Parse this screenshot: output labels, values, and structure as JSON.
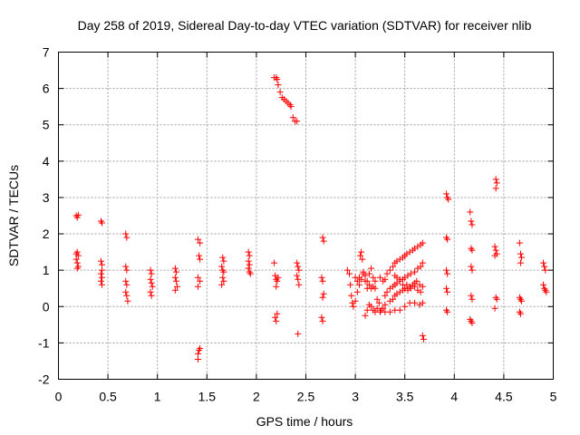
{
  "chart_data": {
    "type": "scatter",
    "title": "Day 258 of 2019, Sidereal Day-to-day VTEC variation (SDTVAR) for receiver nlib",
    "xlabel": "GPS time / hours",
    "ylabel": "SDTVAR / TECUs",
    "xlim": [
      0,
      5
    ],
    "ylim": [
      -2,
      7
    ],
    "xticks": [
      "0",
      "0.5",
      "1",
      "1.5",
      "2",
      "2.5",
      "3",
      "3.5",
      "4",
      "4.5",
      "5"
    ],
    "yticks": [
      "-2",
      "-1",
      "0",
      "1",
      "2",
      "3",
      "4",
      "5",
      "6",
      "7"
    ],
    "grid": true,
    "marker": "+",
    "color": "#ff0000",
    "series": [
      {
        "name": "SDTVAR",
        "points": [
          [
            0.18,
            2.5
          ],
          [
            0.19,
            2.45
          ],
          [
            0.2,
            2.52
          ],
          [
            0.18,
            1.45
          ],
          [
            0.19,
            1.5
          ],
          [
            0.2,
            1.4
          ],
          [
            0.18,
            1.3
          ],
          [
            0.19,
            1.2
          ],
          [
            0.2,
            1.1
          ],
          [
            0.19,
            1.05
          ],
          [
            0.43,
            2.35
          ],
          [
            0.44,
            2.3
          ],
          [
            0.43,
            1.25
          ],
          [
            0.44,
            1.15
          ],
          [
            0.44,
            1.0
          ],
          [
            0.43,
            0.9
          ],
          [
            0.44,
            0.8
          ],
          [
            0.43,
            0.7
          ],
          [
            0.44,
            0.6
          ],
          [
            0.68,
            2.0
          ],
          [
            0.69,
            1.9
          ],
          [
            0.68,
            1.1
          ],
          [
            0.69,
            1.0
          ],
          [
            0.68,
            0.7
          ],
          [
            0.69,
            0.6
          ],
          [
            0.68,
            0.4
          ],
          [
            0.69,
            0.3
          ],
          [
            0.7,
            0.15
          ],
          [
            0.93,
            1.0
          ],
          [
            0.94,
            0.9
          ],
          [
            0.93,
            0.75
          ],
          [
            0.94,
            0.65
          ],
          [
            0.95,
            0.55
          ],
          [
            0.93,
            0.4
          ],
          [
            0.94,
            0.3
          ],
          [
            1.18,
            1.05
          ],
          [
            1.19,
            0.95
          ],
          [
            1.18,
            0.8
          ],
          [
            1.19,
            0.7
          ],
          [
            1.2,
            0.55
          ],
          [
            1.18,
            0.45
          ],
          [
            1.41,
            1.85
          ],
          [
            1.43,
            1.75
          ],
          [
            1.42,
            1.4
          ],
          [
            1.43,
            1.3
          ],
          [
            1.41,
            0.8
          ],
          [
            1.43,
            0.7
          ],
          [
            1.41,
            0.55
          ],
          [
            1.42,
            -1.2
          ],
          [
            1.43,
            -1.15
          ],
          [
            1.41,
            -1.3
          ],
          [
            1.41,
            -1.45
          ],
          [
            1.66,
            1.35
          ],
          [
            1.67,
            1.25
          ],
          [
            1.65,
            1.1
          ],
          [
            1.66,
            1.0
          ],
          [
            1.67,
            0.95
          ],
          [
            1.66,
            0.8
          ],
          [
            1.67,
            0.7
          ],
          [
            1.65,
            0.6
          ],
          [
            1.92,
            1.5
          ],
          [
            1.93,
            1.4
          ],
          [
            1.92,
            1.25
          ],
          [
            1.93,
            1.15
          ],
          [
            1.92,
            1.05
          ],
          [
            1.93,
            0.95
          ],
          [
            1.94,
            0.9
          ],
          [
            2.18,
            6.3
          ],
          [
            2.2,
            6.3
          ],
          [
            2.21,
            6.25
          ],
          [
            2.22,
            6.1
          ],
          [
            2.24,
            5.9
          ],
          [
            2.26,
            5.75
          ],
          [
            2.28,
            5.7
          ],
          [
            2.3,
            5.65
          ],
          [
            2.32,
            5.6
          ],
          [
            2.34,
            5.55
          ],
          [
            2.35,
            5.5
          ],
          [
            2.37,
            5.2
          ],
          [
            2.39,
            5.1
          ],
          [
            2.41,
            5.1
          ],
          [
            2.18,
            1.2
          ],
          [
            2.19,
            0.85
          ],
          [
            2.2,
            0.75
          ],
          [
            2.21,
            0.7
          ],
          [
            2.22,
            0.8
          ],
          [
            2.2,
            0.55
          ],
          [
            2.19,
            -0.3
          ],
          [
            2.2,
            -0.4
          ],
          [
            2.21,
            -0.2
          ],
          [
            2.42,
            -0.75
          ],
          [
            2.41,
            1.2
          ],
          [
            2.42,
            1.1
          ],
          [
            2.43,
            1.0
          ],
          [
            2.41,
            0.85
          ],
          [
            2.42,
            0.75
          ],
          [
            2.43,
            0.6
          ],
          [
            2.67,
            1.9
          ],
          [
            2.68,
            1.8
          ],
          [
            2.66,
            0.8
          ],
          [
            2.67,
            0.7
          ],
          [
            2.68,
            0.35
          ],
          [
            2.67,
            0.25
          ],
          [
            2.66,
            -0.3
          ],
          [
            2.67,
            -0.4
          ],
          [
            2.92,
            1.0
          ],
          [
            2.94,
            0.9
          ],
          [
            2.95,
            0.6
          ],
          [
            2.96,
            0.3
          ],
          [
            2.97,
            0.1
          ],
          [
            2.98,
            0.0
          ],
          [
            3.0,
            0.15
          ],
          [
            3.02,
            0.4
          ],
          [
            3.04,
            0.8
          ],
          [
            3.05,
            1.4
          ],
          [
            3.06,
            1.5
          ],
          [
            3.07,
            1.3
          ],
          [
            3.08,
            0.95
          ],
          [
            3.1,
            0.7
          ],
          [
            3.12,
            0.5
          ],
          [
            3.14,
            0.9
          ],
          [
            3.16,
            1.05
          ],
          [
            3.18,
            0.8
          ],
          [
            3.2,
            0.5
          ],
          [
            3.22,
            0.2
          ],
          [
            3.24,
            0.1
          ],
          [
            3.26,
            -0.1
          ],
          [
            3.28,
            -0.05
          ],
          [
            3.3,
            0.05
          ],
          [
            3.1,
            -0.25
          ],
          [
            3.12,
            -0.1
          ],
          [
            3.14,
            0.05
          ],
          [
            3.16,
            0.0
          ],
          [
            3.18,
            -0.1
          ],
          [
            3.2,
            -0.15
          ],
          [
            3.22,
            -0.05
          ],
          [
            3.25,
            -0.15
          ],
          [
            3.3,
            -0.15
          ],
          [
            3.35,
            -0.15
          ],
          [
            3.4,
            -0.1
          ],
          [
            3.45,
            -0.1
          ],
          [
            3.5,
            0.0
          ],
          [
            3.55,
            0.1
          ],
          [
            3.6,
            0.1
          ],
          [
            3.65,
            0.05
          ],
          [
            3.68,
            0.1
          ],
          [
            3.0,
            0.8
          ],
          [
            3.02,
            0.7
          ],
          [
            3.04,
            0.6
          ],
          [
            3.06,
            0.75
          ],
          [
            3.08,
            0.9
          ],
          [
            3.1,
            0.85
          ],
          [
            3.12,
            0.7
          ],
          [
            3.14,
            0.6
          ],
          [
            3.16,
            0.5
          ],
          [
            3.18,
            0.55
          ],
          [
            3.2,
            0.7
          ],
          [
            3.25,
            0.8
          ],
          [
            3.28,
            0.7
          ],
          [
            3.3,
            0.75
          ],
          [
            3.32,
            0.9
          ],
          [
            3.35,
            1.0
          ],
          [
            3.38,
            1.1
          ],
          [
            3.4,
            1.2
          ],
          [
            3.42,
            1.25
          ],
          [
            3.45,
            1.3
          ],
          [
            3.48,
            1.35
          ],
          [
            3.5,
            1.4
          ],
          [
            3.52,
            1.45
          ],
          [
            3.55,
            1.5
          ],
          [
            3.58,
            1.55
          ],
          [
            3.6,
            1.6
          ],
          [
            3.63,
            1.65
          ],
          [
            3.66,
            1.7
          ],
          [
            3.68,
            1.75
          ],
          [
            3.3,
            0.3
          ],
          [
            3.32,
            0.4
          ],
          [
            3.35,
            0.5
          ],
          [
            3.38,
            0.55
          ],
          [
            3.4,
            0.6
          ],
          [
            3.42,
            0.65
          ],
          [
            3.45,
            0.7
          ],
          [
            3.48,
            0.75
          ],
          [
            3.5,
            0.8
          ],
          [
            3.53,
            0.85
          ],
          [
            3.56,
            0.9
          ],
          [
            3.6,
            0.95
          ],
          [
            3.63,
            1.05
          ],
          [
            3.66,
            1.1
          ],
          [
            3.68,
            1.2
          ],
          [
            3.35,
            0.15
          ],
          [
            3.38,
            0.2
          ],
          [
            3.4,
            0.3
          ],
          [
            3.42,
            0.35
          ],
          [
            3.45,
            0.4
          ],
          [
            3.48,
            0.45
          ],
          [
            3.5,
            0.5
          ],
          [
            3.52,
            0.6
          ],
          [
            3.55,
            0.55
          ],
          [
            3.58,
            0.6
          ],
          [
            3.6,
            0.65
          ],
          [
            3.62,
            0.7
          ],
          [
            3.65,
            0.6
          ],
          [
            3.68,
            0.55
          ],
          [
            3.4,
            0.85
          ],
          [
            3.42,
            0.8
          ],
          [
            3.45,
            0.75
          ],
          [
            3.48,
            0.6
          ],
          [
            3.5,
            0.5
          ],
          [
            3.53,
            0.45
          ],
          [
            3.56,
            0.5
          ],
          [
            3.6,
            0.55
          ],
          [
            3.63,
            0.45
          ],
          [
            3.66,
            0.4
          ],
          [
            3.68,
            -0.8
          ],
          [
            3.69,
            -0.9
          ],
          [
            3.92,
            3.1
          ],
          [
            3.93,
            3.0
          ],
          [
            3.94,
            2.95
          ],
          [
            3.92,
            1.9
          ],
          [
            3.93,
            1.85
          ],
          [
            3.92,
            1.0
          ],
          [
            3.93,
            0.9
          ],
          [
            3.92,
            0.5
          ],
          [
            3.93,
            0.4
          ],
          [
            3.92,
            -0.1
          ],
          [
            3.93,
            -0.15
          ],
          [
            4.16,
            2.6
          ],
          [
            4.17,
            2.35
          ],
          [
            4.18,
            2.25
          ],
          [
            4.17,
            1.6
          ],
          [
            4.18,
            1.55
          ],
          [
            4.17,
            1.1
          ],
          [
            4.18,
            1.0
          ],
          [
            4.17,
            0.3
          ],
          [
            4.18,
            0.2
          ],
          [
            4.16,
            -0.35
          ],
          [
            4.17,
            -0.4
          ],
          [
            4.18,
            -0.45
          ],
          [
            4.42,
            3.5
          ],
          [
            4.43,
            3.4
          ],
          [
            4.42,
            3.25
          ],
          [
            4.41,
            1.65
          ],
          [
            4.42,
            1.55
          ],
          [
            4.43,
            1.45
          ],
          [
            4.41,
            1.4
          ],
          [
            4.42,
            0.25
          ],
          [
            4.43,
            0.2
          ],
          [
            4.41,
            -0.05
          ],
          [
            4.66,
            1.75
          ],
          [
            4.67,
            1.45
          ],
          [
            4.68,
            1.35
          ],
          [
            4.67,
            1.2
          ],
          [
            4.66,
            0.25
          ],
          [
            4.67,
            0.2
          ],
          [
            4.68,
            0.15
          ],
          [
            4.66,
            -0.15
          ],
          [
            4.67,
            -0.2
          ],
          [
            4.9,
            1.2
          ],
          [
            4.91,
            1.1
          ],
          [
            4.92,
            1.0
          ],
          [
            4.9,
            0.6
          ],
          [
            4.91,
            0.5
          ],
          [
            4.92,
            0.45
          ],
          [
            4.93,
            0.4
          ]
        ]
      }
    ]
  }
}
